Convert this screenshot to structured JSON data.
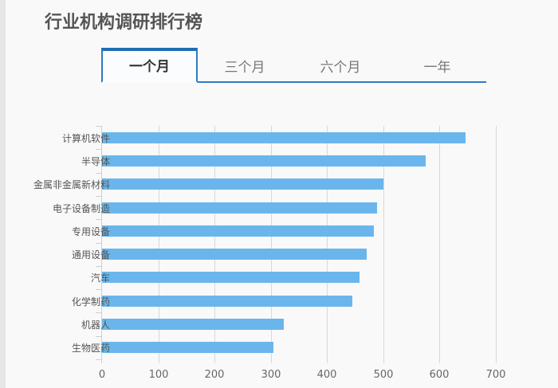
{
  "header": {
    "title": "行业机构调研排行榜"
  },
  "tabs": [
    {
      "label": "一个月",
      "active": true
    },
    {
      "label": "三个月",
      "active": false
    },
    {
      "label": "六个月",
      "active": false
    },
    {
      "label": "一年",
      "active": false
    }
  ],
  "colors": {
    "bar": "#6ab6ec",
    "tab_accent": "#2b7bc4"
  },
  "chart_data": {
    "type": "bar",
    "orientation": "horizontal",
    "title": "行业机构调研排行榜",
    "categories": [
      "计算机软件",
      "半导体",
      "金属非金属新材料",
      "电子设备制造",
      "专用设备",
      "通用设备",
      "汽车",
      "化学制药",
      "机器人",
      "生物医药"
    ],
    "values": [
      646,
      575,
      500,
      489,
      483,
      470,
      458,
      445,
      323,
      305
    ],
    "xlabel": "",
    "ylabel": "",
    "xlim": [
      0,
      700
    ],
    "xticks": [
      0,
      100,
      200,
      300,
      400,
      500,
      600,
      700
    ],
    "grid": true,
    "legend": null
  }
}
